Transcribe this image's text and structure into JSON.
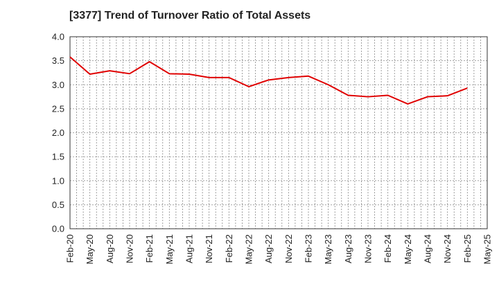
{
  "title": "[3377]  Trend of Turnover Ratio of Total Assets",
  "chart_data": {
    "type": "line",
    "title": "[3377]  Trend of Turnover Ratio of Total Assets",
    "xlabel": "",
    "ylabel": "",
    "ylim": [
      0,
      4.0
    ],
    "yticks": [
      "0.0",
      "0.5",
      "1.0",
      "1.5",
      "2.0",
      "2.5",
      "3.0",
      "3.5",
      "4.0"
    ],
    "xticks": [
      "Feb-20",
      "May-20",
      "Aug-20",
      "Nov-20",
      "Feb-21",
      "May-21",
      "Aug-21",
      "Nov-21",
      "Feb-22",
      "May-22",
      "Aug-22",
      "Nov-22",
      "Feb-23",
      "May-23",
      "Aug-23",
      "Nov-23",
      "Feb-24",
      "May-24",
      "Aug-24",
      "Nov-24",
      "Feb-25",
      "May-25"
    ],
    "grid": true,
    "series": [
      {
        "color": "#e00000",
        "x": [
          "Feb-20",
          "May-20",
          "Aug-20",
          "Nov-20",
          "Feb-21",
          "May-21",
          "Aug-21",
          "Nov-21",
          "Feb-22",
          "May-22",
          "Aug-22",
          "Nov-22",
          "Feb-23",
          "May-23",
          "Aug-23",
          "Nov-23",
          "Feb-24",
          "May-24",
          "Aug-24",
          "Nov-24",
          "Feb-25"
        ],
        "values": [
          3.58,
          3.22,
          3.29,
          3.23,
          3.48,
          3.23,
          3.22,
          3.15,
          3.15,
          2.96,
          3.1,
          3.15,
          3.18,
          3.0,
          2.78,
          2.75,
          2.78,
          2.6,
          2.75,
          2.77,
          2.93
        ]
      }
    ]
  }
}
